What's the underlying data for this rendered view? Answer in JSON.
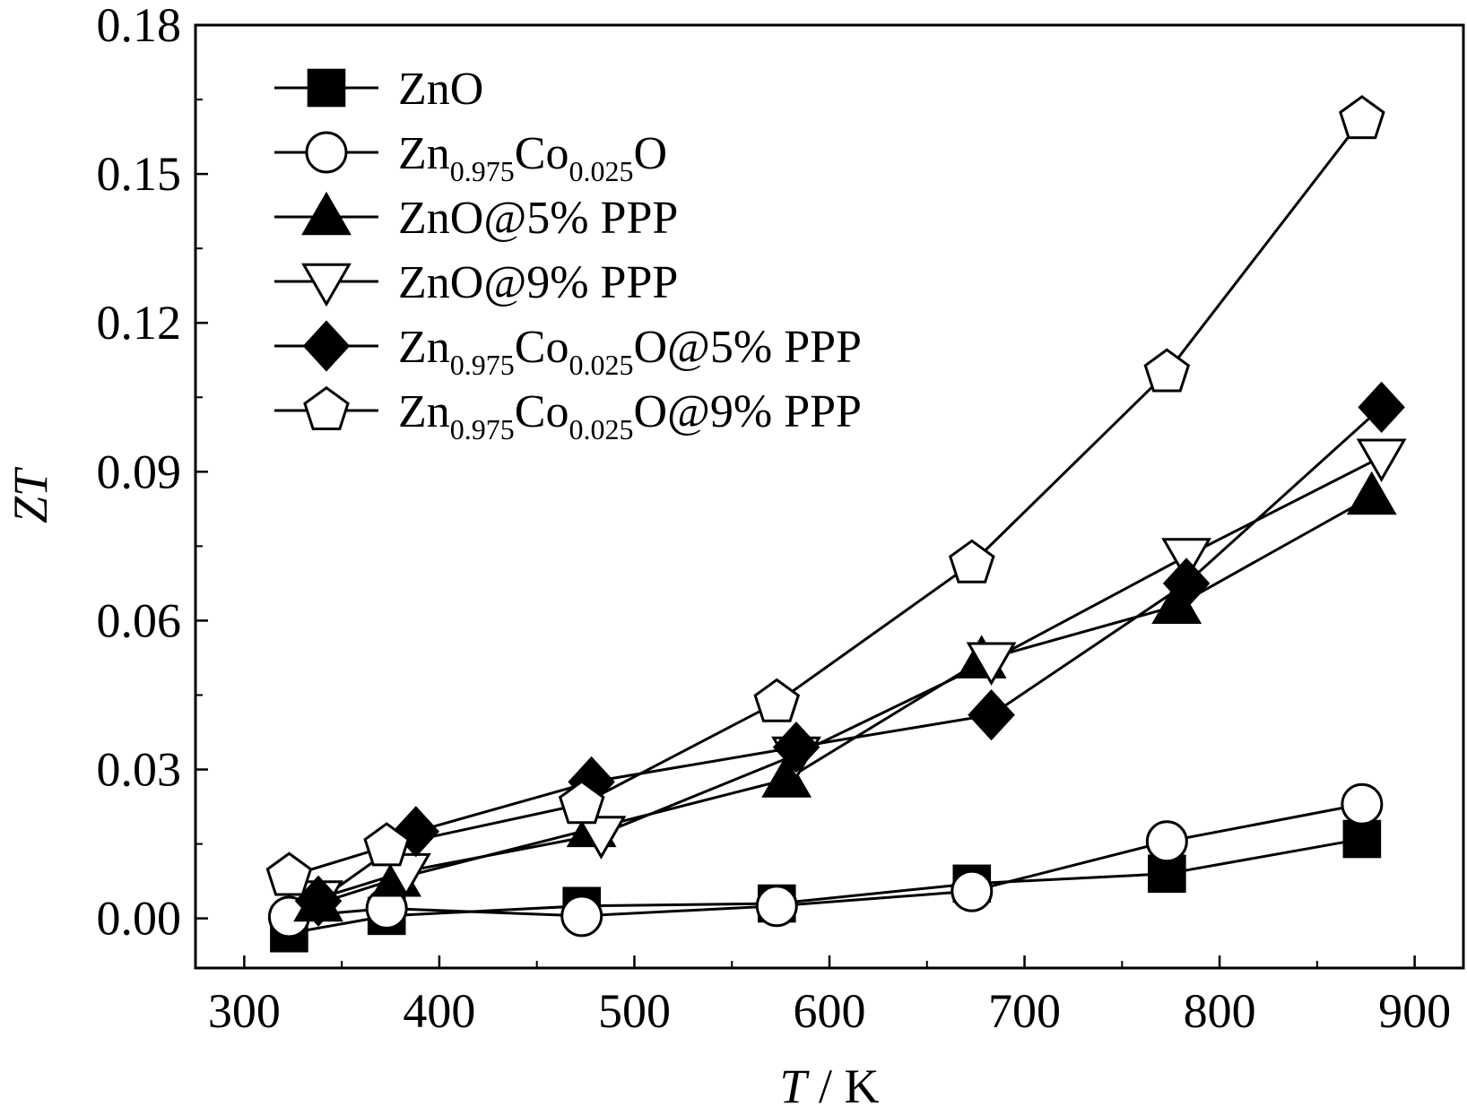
{
  "chart_data": {
    "type": "line",
    "title": "",
    "xlabel": {
      "italic": "T",
      "rest": " / K"
    },
    "ylabel": "ZT",
    "xlim": [
      275,
      925
    ],
    "ylim": [
      -0.01,
      0.18
    ],
    "xticks": [
      300,
      400,
      500,
      600,
      700,
      800,
      900
    ],
    "yticks": [
      0.0,
      0.03,
      0.06,
      0.09,
      0.12,
      0.15,
      0.18
    ],
    "ytick_labels": [
      "0.00",
      "0.03",
      "0.06",
      "0.09",
      "0.12",
      "0.15",
      "0.18"
    ],
    "xtick_labels": [
      "300",
      "400",
      "500",
      "600",
      "700",
      "800",
      "900"
    ],
    "grid": false,
    "legend_position": "top-left",
    "series": [
      {
        "name": "ZnO",
        "legend_parts": [
          {
            "t": "ZnO"
          }
        ],
        "marker": "square",
        "fill": "#000000",
        "x": [
          323,
          373,
          473,
          573,
          673,
          773,
          873
        ],
        "y": [
          -0.003,
          0.0005,
          0.0025,
          0.003,
          0.007,
          0.009,
          0.016
        ]
      },
      {
        "name": "Zn0.975Co0.025O",
        "legend_parts": [
          {
            "t": "Zn"
          },
          {
            "t": "0.975",
            "sub": true
          },
          {
            "t": "Co"
          },
          {
            "t": "0.025",
            "sub": true
          },
          {
            "t": "O"
          }
        ],
        "marker": "circle",
        "fill": "#ffffff",
        "x": [
          323,
          373,
          473,
          573,
          673,
          773,
          873
        ],
        "y": [
          0.0003,
          0.002,
          0.0005,
          0.0025,
          0.0055,
          0.0155,
          0.023
        ]
      },
      {
        "name": "ZnO@5% PPP",
        "legend_parts": [
          {
            "t": "ZnO@5% PPP"
          }
        ],
        "marker": "triangle-up",
        "fill": "#000000",
        "x": [
          338,
          378,
          478,
          578,
          678,
          778,
          878
        ],
        "y": [
          0.003,
          0.008,
          0.018,
          0.028,
          0.052,
          0.063,
          0.085
        ]
      },
      {
        "name": "ZnO@9% PPP",
        "legend_parts": [
          {
            "t": "ZnO@9% PPP"
          }
        ],
        "marker": "triangle-down",
        "fill": "#ffffff",
        "x": [
          338,
          383,
          483,
          583,
          683,
          783,
          883
        ],
        "y": [
          0.004,
          0.0095,
          0.017,
          0.033,
          0.052,
          0.073,
          0.093
        ]
      },
      {
        "name": "Zn0.975Co0.025O@5% PPP",
        "legend_parts": [
          {
            "t": "Zn"
          },
          {
            "t": "0.975",
            "sub": true
          },
          {
            "t": "Co"
          },
          {
            "t": "0.025",
            "sub": true
          },
          {
            "t": "O@5% PPP"
          }
        ],
        "marker": "diamond",
        "fill": "#000000",
        "x": [
          338,
          388,
          478,
          583,
          683,
          783,
          883
        ],
        "y": [
          0.0035,
          0.0175,
          0.0275,
          0.0345,
          0.041,
          0.0675,
          0.103
        ]
      },
      {
        "name": "Zn0.975Co0.025O@9% PPP",
        "legend_parts": [
          {
            "t": "Zn"
          },
          {
            "t": "0.975",
            "sub": true
          },
          {
            "t": "Co"
          },
          {
            "t": "0.025",
            "sub": true
          },
          {
            "t": "O@9% PPP"
          }
        ],
        "marker": "pentagon",
        "fill": "#ffffff",
        "x": [
          323,
          373,
          473,
          573,
          673,
          773,
          873
        ],
        "y": [
          0.0085,
          0.0145,
          0.023,
          0.0435,
          0.0715,
          0.11,
          0.161
        ]
      }
    ]
  }
}
